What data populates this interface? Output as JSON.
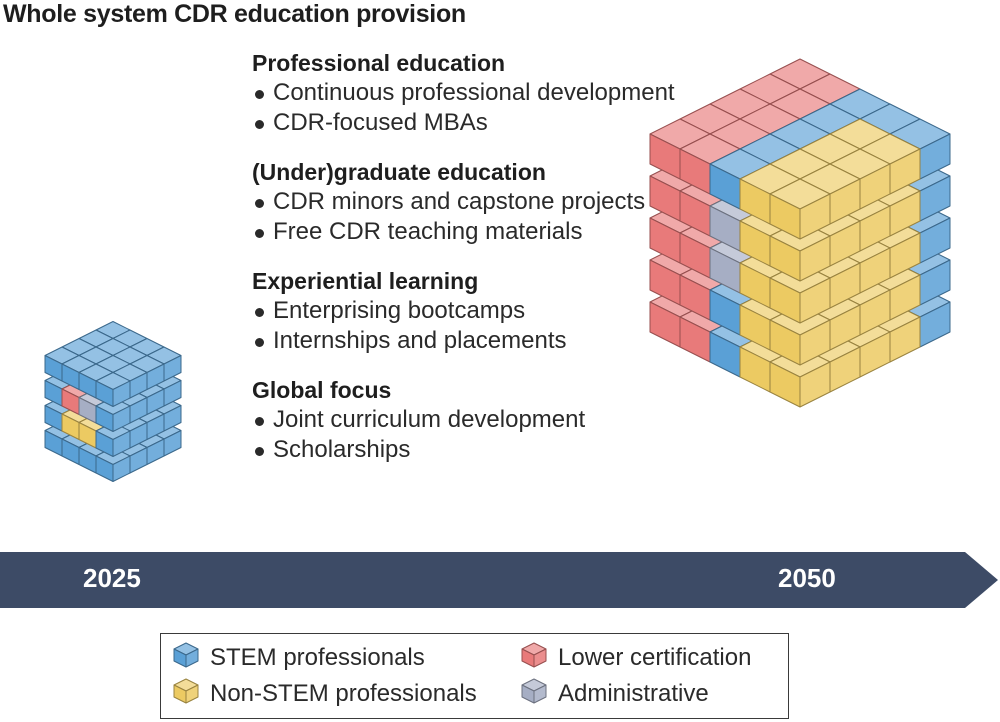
{
  "title": "Whole system CDR education provision",
  "sections": [
    {
      "heading": "Professional education",
      "items": [
        "Continuous professional development",
        "CDR-focused MBAs"
      ]
    },
    {
      "heading": "(Under)graduate education",
      "items": [
        "CDR minors and capstone projects",
        "Free CDR teaching materials"
      ]
    },
    {
      "heading": "Experiential learning",
      "items": [
        "Enterprising bootcamps",
        "Internships and placements"
      ]
    },
    {
      "heading": "Global focus",
      "items": [
        "Joint curriculum development",
        "Scholarships"
      ]
    }
  ],
  "timeline": {
    "start_label": "2025",
    "end_label": "2050",
    "color": "#3d4b66"
  },
  "legend": [
    {
      "label": "STEM professionals",
      "color": "#5aa0d6"
    },
    {
      "label": "Lower certification",
      "color": "#e87a7a"
    },
    {
      "label": "Non-STEM professionals",
      "color": "#ecca62"
    },
    {
      "label": "Administrative",
      "color": "#a6aec4"
    }
  ]
}
